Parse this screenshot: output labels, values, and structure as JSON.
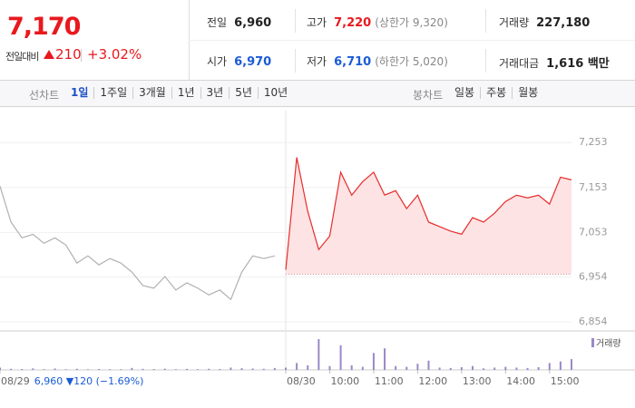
{
  "header": {
    "price": "7,170",
    "change_label": "전일대비",
    "change": "210",
    "change_rate": "+3.02%",
    "stats": [
      {
        "label": "전일",
        "value": "6,960"
      },
      {
        "label": "고가",
        "value": "7,220",
        "note": "(상한가 9,320)"
      },
      {
        "label": "거래량",
        "value": "227,180"
      },
      {
        "label": "시가",
        "value": "6,970"
      },
      {
        "label": "저가",
        "value": "6,710",
        "note": "(하한가 5,020)"
      },
      {
        "label": "거래대금",
        "value": "1,616 백만"
      }
    ]
  },
  "tabs": {
    "line_label": "선차트",
    "line_periods": [
      "1일",
      "1주일",
      "3개월",
      "1년",
      "3년",
      "5년",
      "10년"
    ],
    "candle_label": "봉차트",
    "candle_periods": [
      "일봉",
      "주봉",
      "월봉"
    ]
  },
  "chart_data": {
    "type": "line",
    "x": [
      2.5,
      2.75,
      3,
      3.25,
      3.5,
      3.75,
      4,
      4.25,
      4.5,
      4.75,
      5,
      5.25,
      5.5,
      5.75,
      6,
      6.25,
      6.5,
      6.75,
      7,
      7.25,
      7.5,
      7.75,
      8,
      8.25,
      8.5,
      8.75,
      9,
      9.25,
      9.5,
      9.75,
      10,
      10.25,
      10.5,
      10.75,
      11,
      11.25,
      11.5,
      11.75,
      12,
      12.25,
      12.5,
      12.75,
      13,
      13.25,
      13.5,
      13.75,
      14,
      14.25,
      14.5,
      14.75,
      15,
      15.25,
      15.5
    ],
    "series": [
      {
        "color": "#b0b0b0",
        "values": [
          7156,
          7076,
          7041,
          7049,
          7029,
          7041,
          7025,
          6985,
          7001,
          6981,
          6995,
          6985,
          6965,
          6935,
          6929,
          6955,
          6925,
          6941,
          6929,
          6914,
          6925,
          6904,
          6965,
          7001,
          6995,
          7001,
          null,
          null,
          null,
          null,
          null,
          null,
          null,
          null,
          null,
          null,
          null,
          null,
          null,
          null,
          null,
          null,
          null,
          null,
          null,
          null,
          null,
          null,
          null,
          null,
          null,
          null,
          null
        ]
      },
      {
        "color": "#e62c2c",
        "fill": "#fde3e3",
        "values": [
          null,
          null,
          null,
          null,
          null,
          null,
          null,
          null,
          null,
          null,
          null,
          null,
          null,
          null,
          null,
          null,
          null,
          null,
          null,
          null,
          null,
          null,
          null,
          null,
          null,
          null,
          6970,
          7220,
          7100,
          7015,
          7045,
          7187,
          7136,
          7166,
          7187,
          7136,
          7146,
          7106,
          7136,
          7076,
          7066,
          7056,
          7049,
          7086,
          7076,
          7096,
          7122,
          7136,
          7130,
          7136,
          7116,
          7176,
          7170
        ]
      }
    ],
    "baseline": 6960,
    "volume": {
      "name": "거래량",
      "color": "#9a88c9",
      "values": [
        3000,
        1500,
        1200,
        2000,
        1000,
        1800,
        900,
        1500,
        800,
        1200,
        1000,
        900,
        2500,
        1400,
        1100,
        1600,
        900,
        1300,
        1000,
        1500,
        1200,
        3000,
        2200,
        1800,
        1500,
        2500,
        3000,
        9000,
        6000,
        40000,
        5000,
        32000,
        6000,
        4000,
        22000,
        28000,
        5000,
        4000,
        8000,
        12000,
        3000,
        2500,
        3500,
        5000,
        2000,
        3000,
        4000,
        3000,
        2500,
        3500,
        9000,
        11000,
        14000
      ]
    },
    "xlim": [
      2.5,
      15.5
    ],
    "xticks": [
      {
        "value": 2.5,
        "label": "08/29"
      },
      {
        "value": 9,
        "label": "08/30"
      },
      {
        "value": 10,
        "label": "10:00"
      },
      {
        "value": 11,
        "label": "11:00"
      },
      {
        "value": 12,
        "label": "12:00"
      },
      {
        "value": 13,
        "label": "13:00"
      },
      {
        "value": 14,
        "label": "14:00"
      },
      {
        "value": 15,
        "label": "15:00"
      }
    ],
    "ylim": [
      6834,
      7324
    ],
    "yticks": [
      {
        "value": 7253,
        "label": "7,253"
      },
      {
        "value": 7153,
        "label": "7,153"
      },
      {
        "value": 7053,
        "label": "7,053"
      },
      {
        "value": 6954,
        "label": "6,954"
      },
      {
        "value": 6854,
        "label": "6,854"
      }
    ],
    "annotation": "6,960 ▼120 (−1.69%)",
    "grid": true
  }
}
